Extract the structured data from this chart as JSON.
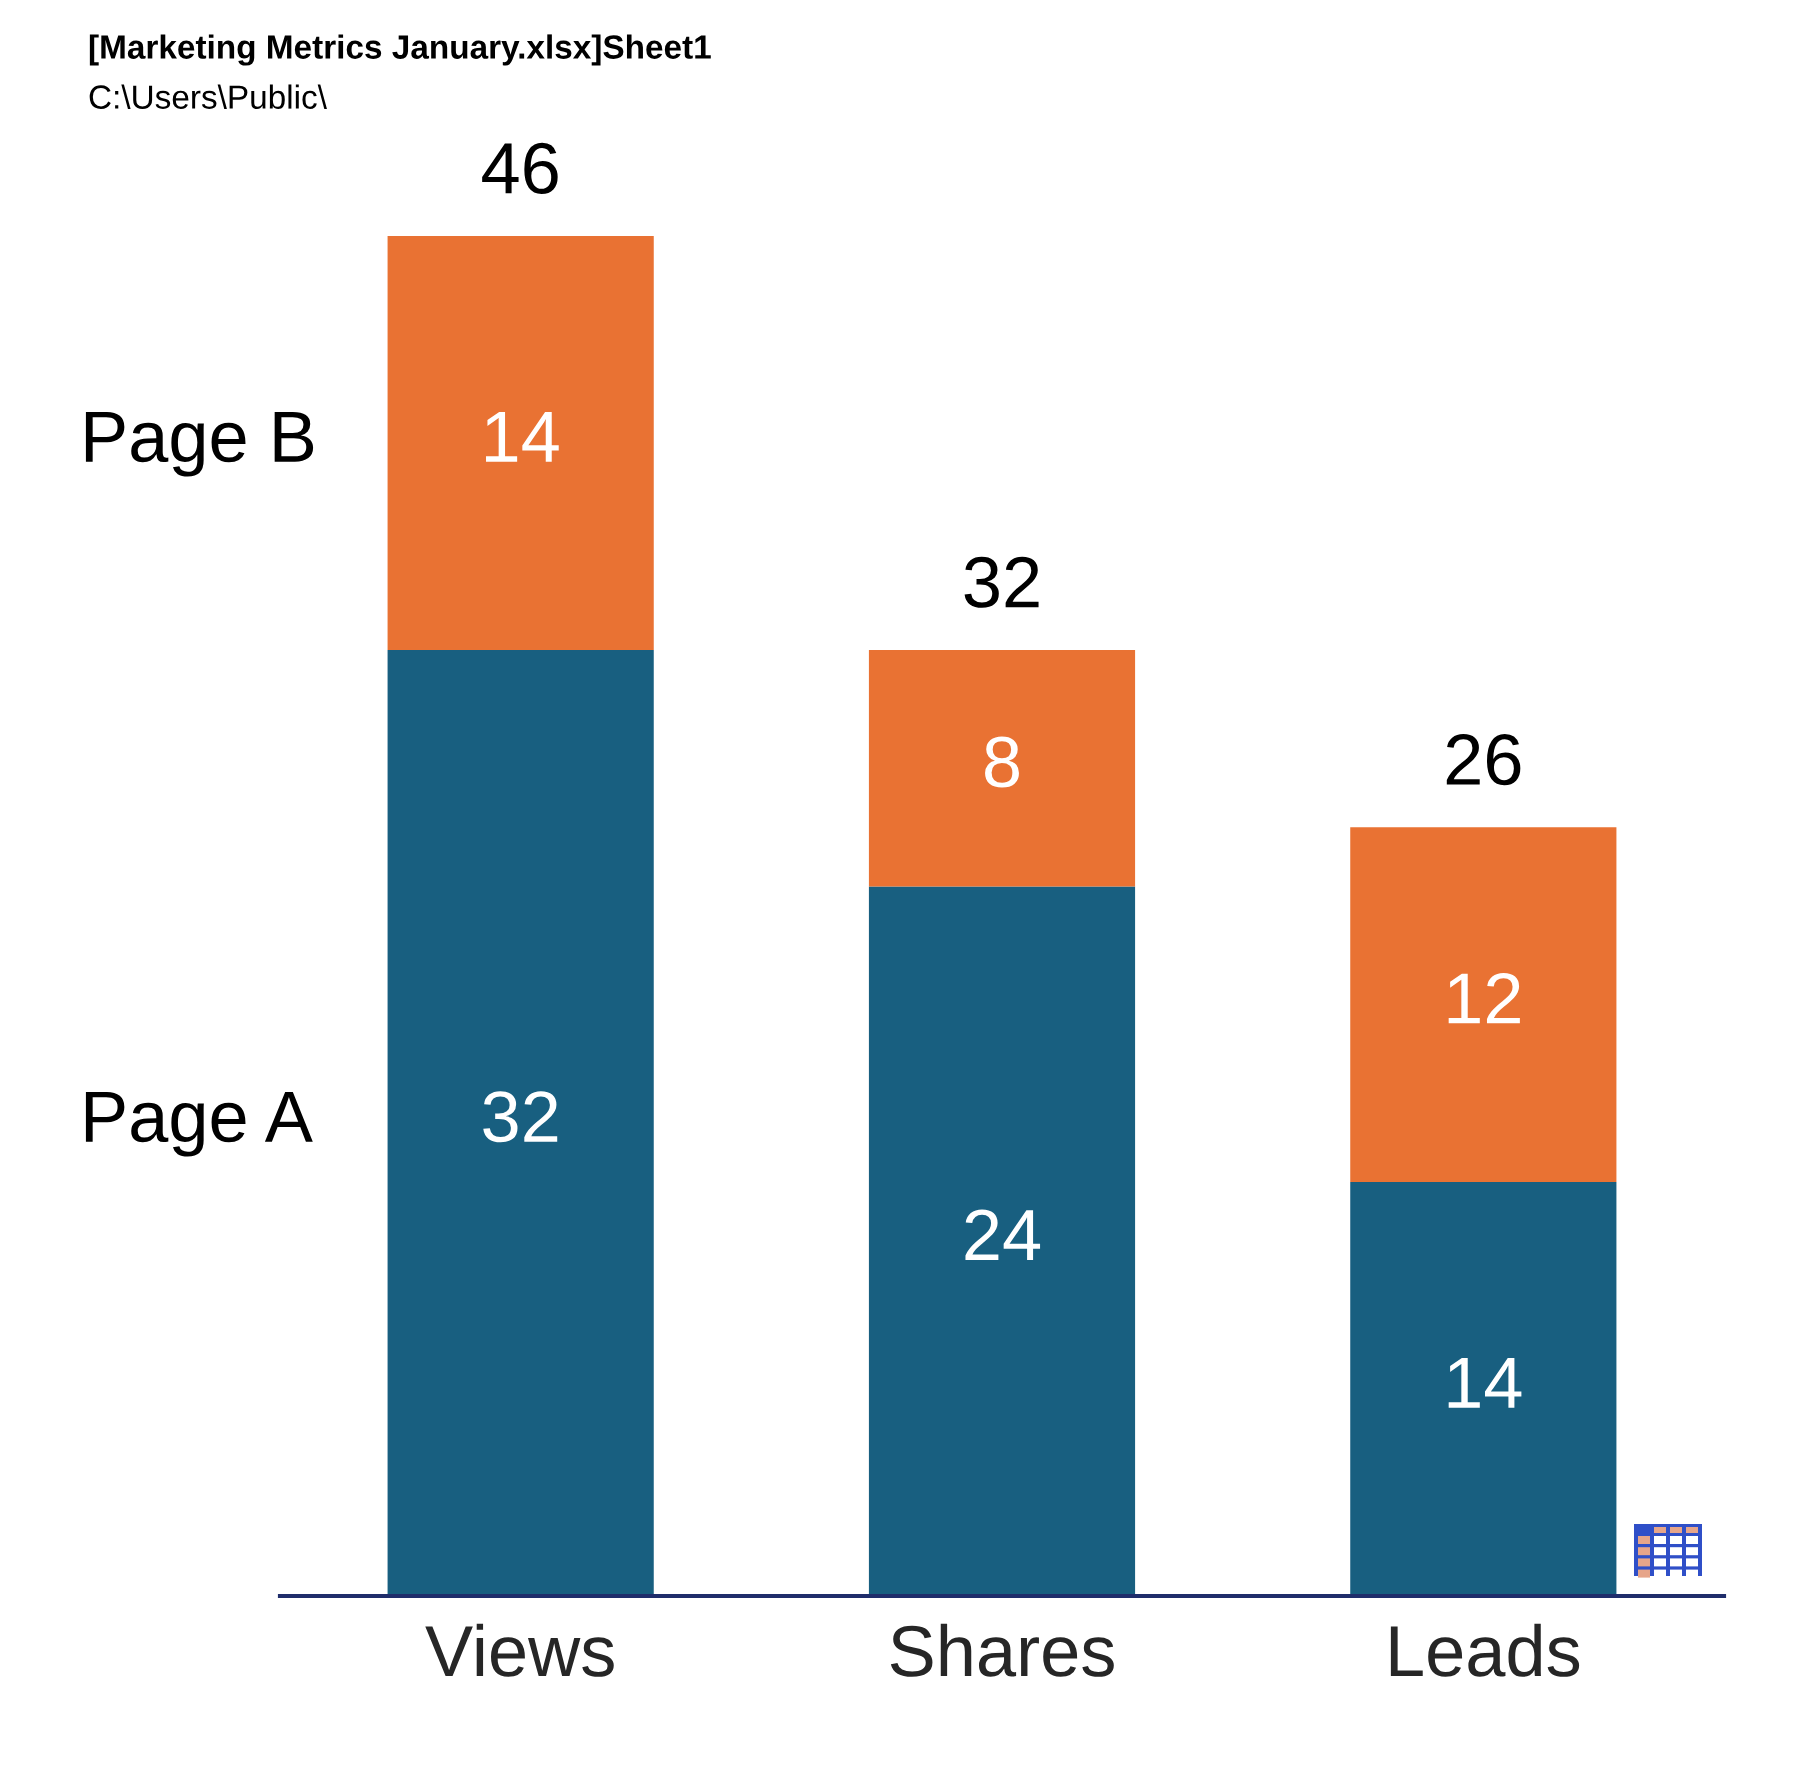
{
  "chart_data": {
    "type": "bar",
    "title": "[Marketing Metrics January.xlsx]Sheet1",
    "subtitle": "C:\\Users\\Public\\",
    "categories": [
      "Views",
      "Shares",
      "Leads"
    ],
    "stacked": true,
    "series": [
      {
        "name": "Page A",
        "color": "#185f80",
        "values": [
          32,
          24,
          14
        ]
      },
      {
        "name": "Page B",
        "color": "#e97233",
        "values": [
          14,
          8,
          12
        ]
      }
    ],
    "ylim": [
      0,
      46
    ],
    "data_labels": true,
    "totals": [
      "46",
      "32",
      "26"
    ],
    "legend": "left",
    "tick_labels": "x"
  }
}
